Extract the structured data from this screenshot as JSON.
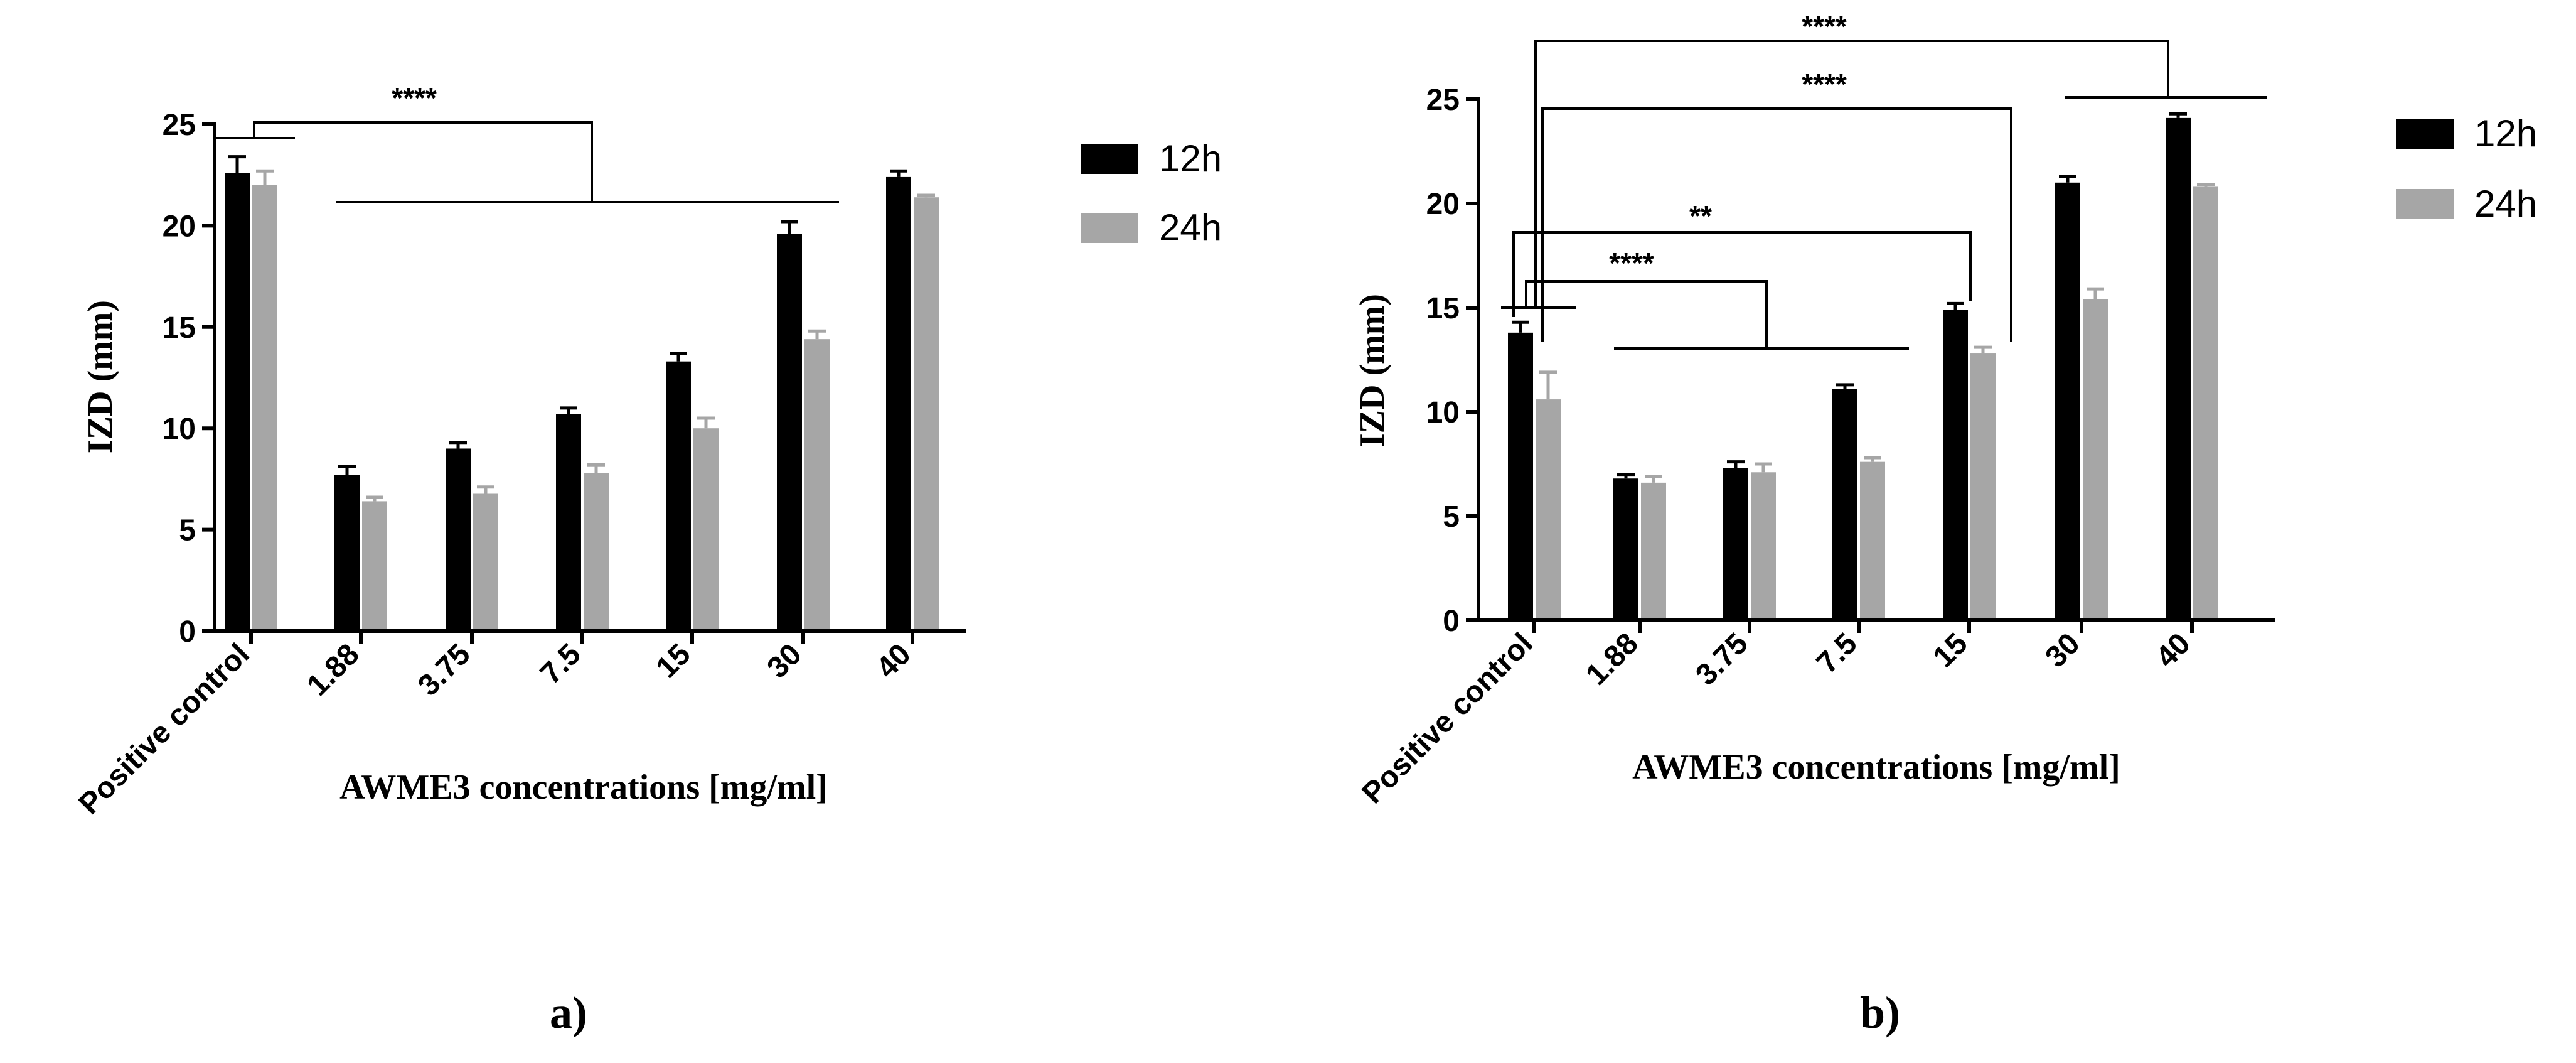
{
  "colors": {
    "h12": "#000000",
    "h24": "#a6a6a6",
    "axis": "#000000"
  },
  "chart_data": [
    {
      "type": "bar",
      "panel_label": "a)",
      "xlabel": "AWME3 concentrations [mg/ml]",
      "ylabel": "IZD (mm)",
      "ylim": [
        0,
        25
      ],
      "yticks": [
        "0",
        "5",
        "10",
        "15",
        "20",
        "25"
      ],
      "categories": [
        "Positive control",
        "1.88",
        "3.75",
        "7.5",
        "15",
        "30",
        "40"
      ],
      "series": [
        {
          "name": "12h",
          "values": [
            22.6,
            7.7,
            9.0,
            10.7,
            13.3,
            19.6,
            22.4
          ],
          "errors": [
            0.8,
            0.4,
            0.3,
            0.3,
            0.4,
            0.6,
            0.3
          ]
        },
        {
          "name": "24h",
          "values": [
            22.0,
            6.4,
            6.8,
            7.8,
            10.0,
            14.4,
            21.4
          ],
          "errors": [
            0.7,
            0.2,
            0.3,
            0.4,
            0.5,
            0.4,
            0.1
          ]
        }
      ],
      "annotations": [
        {
          "text": "****",
          "from": "Positive control",
          "to_range": [
            "1.88",
            "30"
          ]
        }
      ]
    },
    {
      "type": "bar",
      "panel_label": "b)",
      "xlabel": "AWME3 concentrations [mg/ml]",
      "ylabel": "IZD (mm)",
      "ylim": [
        0,
        25
      ],
      "yticks": [
        "0",
        "5",
        "10",
        "15",
        "20",
        "25"
      ],
      "categories": [
        "Positive control",
        "1.88",
        "3.75",
        "7.5",
        "15",
        "30",
        "40"
      ],
      "series": [
        {
          "name": "12h",
          "values": [
            13.8,
            6.8,
            7.3,
            11.1,
            14.9,
            21.0,
            24.1
          ],
          "errors": [
            0.5,
            0.2,
            0.3,
            0.2,
            0.3,
            0.3,
            0.2
          ]
        },
        {
          "name": "24h",
          "values": [
            10.6,
            6.6,
            7.1,
            7.6,
            12.8,
            15.4,
            20.8
          ],
          "errors": [
            1.3,
            0.3,
            0.4,
            0.2,
            0.3,
            0.5,
            0.1
          ]
        }
      ],
      "annotations": [
        {
          "text": "****",
          "from": "Positive control",
          "to_range": [
            "30",
            "40"
          ]
        },
        {
          "text": "****",
          "from": "Positive control",
          "to": "15 (24h)"
        },
        {
          "text": "**",
          "from": "Positive control",
          "to": "15 (12h)"
        },
        {
          "text": "****",
          "from": "Positive control",
          "to_range": [
            "1.88",
            "7.5"
          ]
        }
      ]
    }
  ]
}
